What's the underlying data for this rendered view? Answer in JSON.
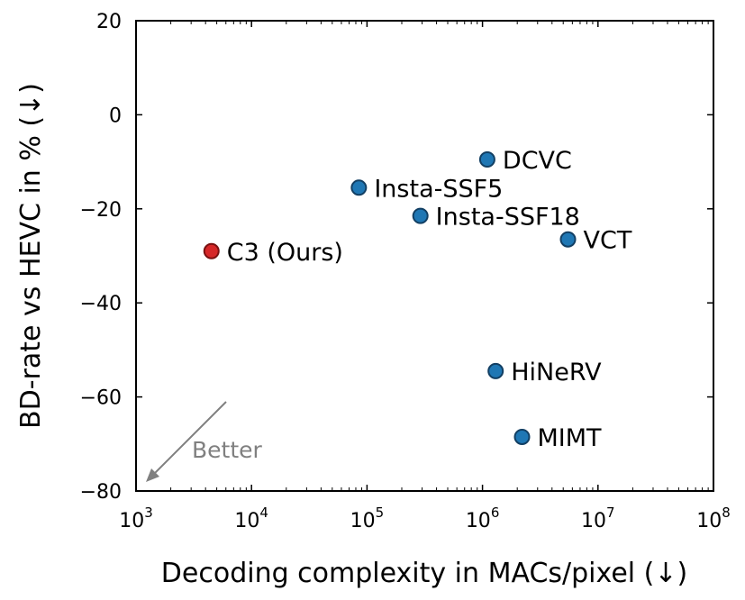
{
  "chart_data": {
    "type": "scatter",
    "x_scale": "log",
    "xlim": [
      1000,
      100000000
    ],
    "ylim": [
      -80,
      20
    ],
    "xlabel": "Decoding complexity in MACs/pixel (↓)",
    "ylabel": "BD-rate vs HEVC in % (↓)",
    "x_ticks": [
      {
        "base": "10",
        "exp": "3"
      },
      {
        "base": "10",
        "exp": "4"
      },
      {
        "base": "10",
        "exp": "5"
      },
      {
        "base": "10",
        "exp": "6"
      },
      {
        "base": "10",
        "exp": "7"
      },
      {
        "base": "10",
        "exp": "8"
      }
    ],
    "y_ticks": [
      "20",
      "0",
      "−20",
      "−40",
      "−60",
      "−80"
    ],
    "y_tick_values": [
      20,
      0,
      -20,
      -40,
      -60,
      -80
    ],
    "grid": false,
    "points": [
      {
        "label": "C3 (Ours)",
        "x": 4500,
        "y": -29,
        "color": "#d62728"
      },
      {
        "label": "Insta-SSF5",
        "x": 85000,
        "y": -15.5,
        "color": "#1f77b4"
      },
      {
        "label": "Insta-SSF18",
        "x": 290000,
        "y": -21.5,
        "color": "#1f77b4"
      },
      {
        "label": "DCVC",
        "x": 1100000,
        "y": -9.5,
        "color": "#1f77b4"
      },
      {
        "label": "VCT",
        "x": 5500000,
        "y": -26.5,
        "color": "#1f77b4"
      },
      {
        "label": "HiNeRV",
        "x": 1300000,
        "y": -54.5,
        "color": "#1f77b4"
      },
      {
        "label": "MIMT",
        "x": 2200000,
        "y": -68.5,
        "color": "#1f77b4"
      }
    ],
    "annotation": {
      "text": "Better",
      "color": "#808080"
    }
  }
}
